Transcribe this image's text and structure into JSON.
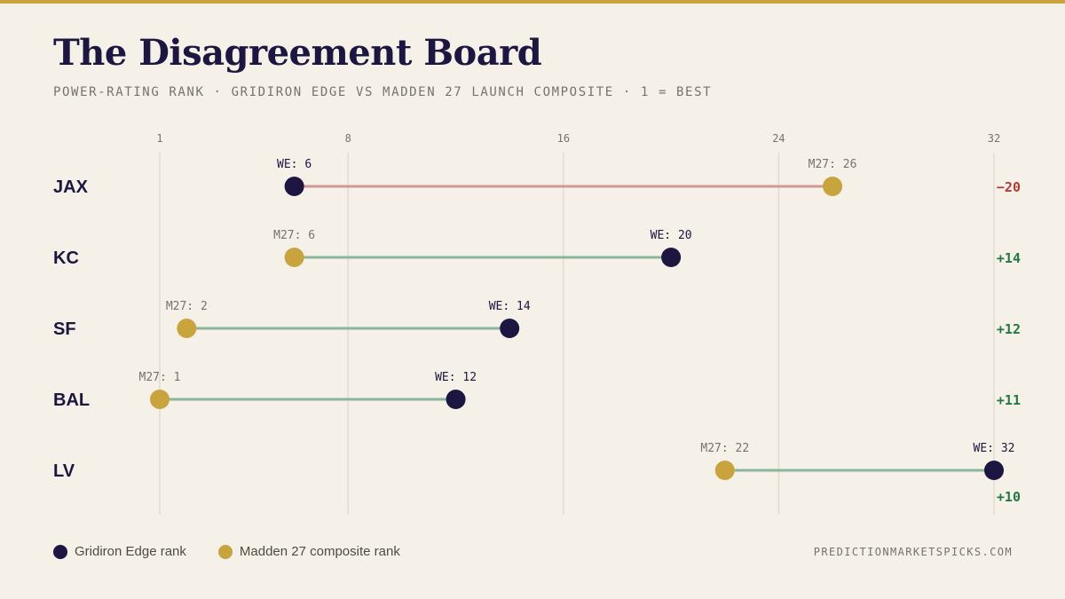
{
  "header": {
    "title": "The Disagreement Board",
    "subtitle": "POWER-RATING RANK · GRIDIRON EDGE VS MADDEN 27 LAUNCH COMPOSITE · 1 = BEST"
  },
  "colors": {
    "accent_bar": "#c9a43e",
    "edge_dot": "#1c1640",
    "madden_dot": "#c9a43e",
    "negative": "#b03a34",
    "positive": "#23773f",
    "negative_line": "#d09a94",
    "positive_line": "#8cb69a"
  },
  "chart_data": {
    "type": "dumbbell",
    "x_ticks": [
      1,
      8,
      16,
      24,
      32
    ],
    "xlim": [
      1,
      32
    ],
    "grid": true,
    "series": [
      {
        "name": "Gridiron Edge rank",
        "label_prefix": "WE: "
      },
      {
        "name": "Madden 27 composite rank",
        "label_prefix": "M27: "
      }
    ],
    "rows": [
      {
        "team": "JAX",
        "edge": 6,
        "madden": 26,
        "diff": "−20",
        "sign": "negative"
      },
      {
        "team": "KC",
        "edge": 20,
        "madden": 6,
        "diff": "+14",
        "sign": "positive"
      },
      {
        "team": "SF",
        "edge": 14,
        "madden": 2,
        "diff": "+12",
        "sign": "positive"
      },
      {
        "team": "BAL",
        "edge": 12,
        "madden": 1,
        "diff": "+11",
        "sign": "positive"
      },
      {
        "team": "LV",
        "edge": 32,
        "madden": 22,
        "diff": "+10",
        "sign": "positive"
      }
    ]
  },
  "legend": {
    "edge_label": "Gridiron Edge rank",
    "madden_label": "Madden 27 composite rank"
  },
  "footer": {
    "source": "PREDICTIONMARKETSPICKS.COM"
  }
}
